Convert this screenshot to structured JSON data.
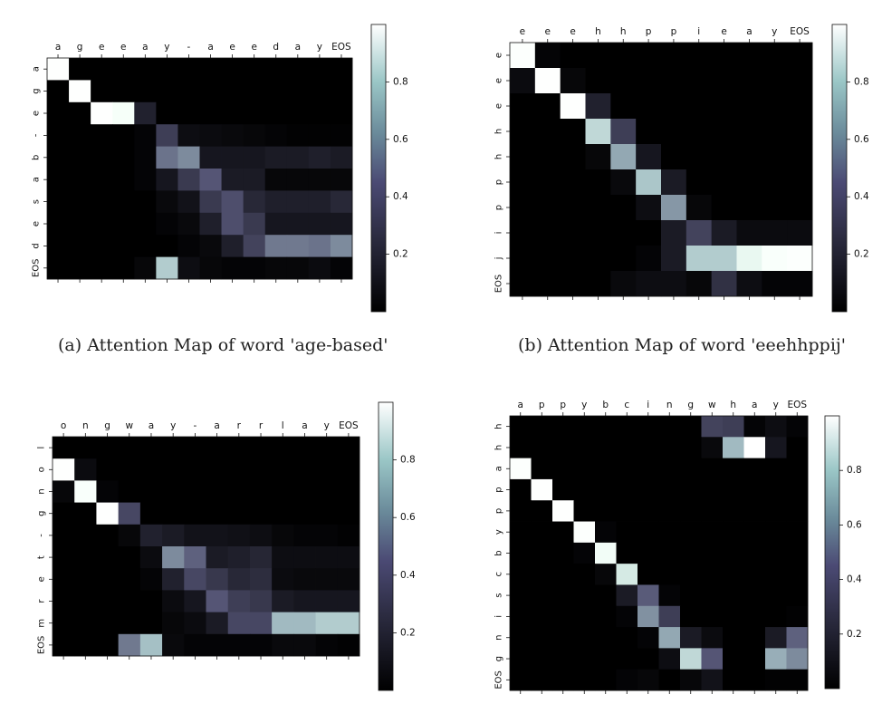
{
  "captions": {
    "a": "(a) Attention Map of word 'age-based'",
    "b": "(b) Attention Map of word 'eeehhppij'"
  },
  "colorbar_ticks": [
    "0.2",
    "0.4",
    "0.6",
    "0.8"
  ],
  "chart_data": [
    {
      "type": "heatmap",
      "title": "",
      "x_labels": [
        "a",
        "g",
        "e",
        "e",
        "a",
        "y",
        "-",
        "a",
        "e",
        "e",
        "d",
        "a",
        "y",
        "EOS"
      ],
      "y_labels": [
        "a",
        "g",
        "e",
        "-",
        "b",
        "a",
        "s",
        "e",
        "d",
        "EOS"
      ],
      "colorbar": {
        "min": 0,
        "max": 1,
        "ticks": [
          0.2,
          0.4,
          0.6,
          0.8
        ]
      },
      "values": [
        [
          0.98,
          0,
          0,
          0,
          0,
          0,
          0,
          0,
          0,
          0,
          0,
          0,
          0,
          0
        ],
        [
          0,
          0.98,
          0,
          0,
          0,
          0,
          0,
          0,
          0,
          0,
          0,
          0,
          0,
          0
        ],
        [
          0,
          0,
          0.98,
          0.95,
          0.15,
          0,
          0,
          0,
          0,
          0,
          0,
          0,
          0,
          0
        ],
        [
          0,
          0,
          0,
          0,
          0.02,
          0.28,
          0.06,
          0.05,
          0.04,
          0.03,
          0.02,
          0.01,
          0.01,
          0.01
        ],
        [
          0,
          0,
          0,
          0,
          0.02,
          0.48,
          0.56,
          0.1,
          0.1,
          0.1,
          0.12,
          0.12,
          0.14,
          0.12
        ],
        [
          0,
          0,
          0,
          0,
          0.02,
          0.1,
          0.26,
          0.38,
          0.12,
          0.12,
          0.03,
          0.03,
          0.03,
          0.03
        ],
        [
          0,
          0,
          0,
          0,
          0,
          0.04,
          0.08,
          0.26,
          0.35,
          0.18,
          0.14,
          0.14,
          0.14,
          0.18
        ],
        [
          0,
          0,
          0,
          0,
          0,
          0.02,
          0.04,
          0.14,
          0.35,
          0.26,
          0.1,
          0.1,
          0.1,
          0.1
        ],
        [
          0,
          0,
          0,
          0,
          0,
          0,
          0.02,
          0.04,
          0.14,
          0.3,
          0.5,
          0.5,
          0.48,
          0.56
        ],
        [
          0,
          0,
          0,
          0,
          0.03,
          0.78,
          0.06,
          0.03,
          0.02,
          0.02,
          0.03,
          0.03,
          0.05,
          0.02
        ]
      ]
    },
    {
      "type": "heatmap",
      "title": "",
      "x_labels": [
        "e",
        "e",
        "e",
        "h",
        "h",
        "p",
        "p",
        "i",
        "e",
        "a",
        "y",
        "EOS"
      ],
      "y_labels": [
        "e",
        "e",
        "e",
        "h",
        "h",
        "p",
        "p",
        "i",
        "j",
        "EOS"
      ],
      "colorbar": {
        "min": 0,
        "max": 1,
        "ticks": [
          0.2,
          0.4,
          0.6,
          0.8
        ]
      },
      "values": [
        [
          0.97,
          0.02,
          0,
          0,
          0,
          0,
          0,
          0,
          0,
          0,
          0,
          0
        ],
        [
          0.05,
          0.98,
          0.03,
          0,
          0,
          0,
          0,
          0,
          0,
          0,
          0,
          0
        ],
        [
          0,
          0,
          0.98,
          0.15,
          0,
          0,
          0,
          0,
          0,
          0,
          0,
          0
        ],
        [
          0,
          0,
          0,
          0.82,
          0.28,
          0,
          0,
          0,
          0,
          0,
          0,
          0
        ],
        [
          0,
          0,
          0,
          0.03,
          0.66,
          0.1,
          0,
          0,
          0,
          0,
          0,
          0
        ],
        [
          0,
          0,
          0,
          0,
          0.04,
          0.76,
          0.12,
          0,
          0,
          0,
          0,
          0
        ],
        [
          0,
          0,
          0,
          0,
          0,
          0.06,
          0.6,
          0.03,
          0,
          0,
          0,
          0
        ],
        [
          0,
          0,
          0,
          0,
          0,
          0,
          0.12,
          0.3,
          0.12,
          0.05,
          0.05,
          0.05
        ],
        [
          0,
          0,
          0,
          0,
          0,
          0.02,
          0.12,
          0.78,
          0.78,
          0.92,
          0.96,
          0.97
        ],
        [
          0,
          0,
          0,
          0,
          0.04,
          0.06,
          0.06,
          0.03,
          0.22,
          0.06,
          0.02,
          0.02
        ]
      ]
    },
    {
      "type": "heatmap",
      "title": "",
      "x_labels": [
        "o",
        "n",
        "g",
        "w",
        "a",
        "y",
        "-",
        "a",
        "r",
        "r",
        "l",
        "a",
        "y",
        "EOS"
      ],
      "y_labels": [
        "l",
        "o",
        "n",
        "g",
        "-",
        "t",
        "e",
        "r",
        "m",
        "EOS"
      ],
      "colorbar": {
        "min": 0,
        "max": 1,
        "ticks": [
          0.2,
          0.4,
          0.6,
          0.8
        ]
      },
      "values": [
        [
          0,
          0,
          0,
          0,
          0,
          0,
          0,
          0,
          0,
          0,
          0,
          0,
          0,
          0
        ],
        [
          0.98,
          0.05,
          0,
          0,
          0,
          0,
          0,
          0,
          0,
          0,
          0,
          0,
          0,
          0
        ],
        [
          0.03,
          0.96,
          0.02,
          0,
          0,
          0,
          0,
          0,
          0,
          0,
          0,
          0,
          0,
          0
        ],
        [
          0,
          0,
          0.98,
          0.32,
          0,
          0,
          0,
          0,
          0,
          0,
          0,
          0,
          0,
          0
        ],
        [
          0,
          0,
          0,
          0.03,
          0.15,
          0.12,
          0.08,
          0.08,
          0.07,
          0.06,
          0.03,
          0.02,
          0.02,
          0.01
        ],
        [
          0,
          0,
          0,
          0,
          0.05,
          0.56,
          0.42,
          0.12,
          0.14,
          0.17,
          0.06,
          0.06,
          0.06,
          0.06
        ],
        [
          0,
          0,
          0,
          0,
          0.02,
          0.15,
          0.32,
          0.25,
          0.18,
          0.2,
          0.05,
          0.04,
          0.04,
          0.04
        ],
        [
          0,
          0,
          0,
          0,
          0,
          0.05,
          0.1,
          0.38,
          0.28,
          0.25,
          0.12,
          0.1,
          0.1,
          0.1
        ],
        [
          0,
          0,
          0,
          0,
          0,
          0.03,
          0.05,
          0.12,
          0.32,
          0.32,
          0.72,
          0.72,
          0.78,
          0.78
        ],
        [
          0,
          0,
          0,
          0.5,
          0.74,
          0.04,
          0.02,
          0.02,
          0.02,
          0.02,
          0.04,
          0.04,
          0.02,
          0.01
        ]
      ]
    },
    {
      "type": "heatmap",
      "title": "",
      "x_labels": [
        "a",
        "p",
        "p",
        "y",
        "b",
        "c",
        "i",
        "n",
        "g",
        "w",
        "h",
        "a",
        "y",
        "EOS"
      ],
      "y_labels": [
        "h",
        "h",
        "a",
        "p",
        "p",
        "y",
        "b",
        "c",
        "s",
        "i",
        "n",
        "g",
        "EOS"
      ],
      "colorbar": {
        "min": 0,
        "max": 1,
        "ticks": [
          0.2,
          0.4,
          0.6,
          0.8
        ]
      },
      "values": [
        [
          0,
          0,
          0,
          0,
          0,
          0,
          0,
          0,
          0,
          0.3,
          0.28,
          0.02,
          0.06,
          0.02
        ],
        [
          0,
          0,
          0,
          0,
          0,
          0,
          0,
          0,
          0,
          0.04,
          0.72,
          0.99,
          0.1,
          0
        ],
        [
          0.97,
          0,
          0,
          0,
          0,
          0,
          0,
          0,
          0,
          0,
          0,
          0,
          0,
          0
        ],
        [
          0,
          0.98,
          0,
          0,
          0,
          0,
          0,
          0,
          0,
          0,
          0,
          0,
          0,
          0
        ],
        [
          0,
          0,
          0.98,
          0,
          0,
          0,
          0,
          0,
          0,
          0,
          0,
          0,
          0,
          0
        ],
        [
          0,
          0,
          0,
          0.97,
          0.02,
          0,
          0,
          0,
          0,
          0,
          0,
          0,
          0,
          0
        ],
        [
          0,
          0,
          0,
          0.02,
          0.94,
          0,
          0,
          0,
          0,
          0,
          0,
          0,
          0,
          0
        ],
        [
          0,
          0,
          0,
          0,
          0.03,
          0.88,
          0,
          0,
          0,
          0,
          0,
          0,
          0,
          0
        ],
        [
          0,
          0,
          0,
          0,
          0,
          0.12,
          0.4,
          0.02,
          0,
          0,
          0,
          0,
          0,
          0
        ],
        [
          0,
          0,
          0,
          0,
          0,
          0.02,
          0.58,
          0.28,
          0,
          0,
          0,
          0,
          0,
          0.01
        ],
        [
          0,
          0,
          0,
          0,
          0,
          0,
          0.02,
          0.66,
          0.12,
          0.05,
          0,
          0,
          0.12,
          0.42
        ],
        [
          0,
          0,
          0,
          0,
          0,
          0,
          0,
          0.06,
          0.82,
          0.38,
          0,
          0,
          0.68,
          0.56
        ],
        [
          0,
          0,
          0,
          0,
          0,
          0.02,
          0.03,
          0,
          0.03,
          0.08,
          0,
          0,
          0.01,
          0.01
        ]
      ]
    }
  ]
}
